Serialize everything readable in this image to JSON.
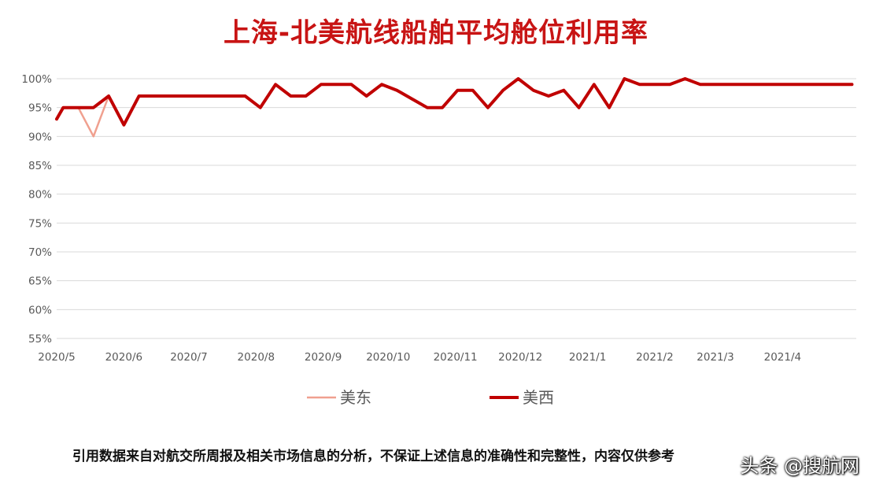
{
  "chart_data": {
    "type": "line",
    "title": "上海-北美航线船舶平均舱位利用率",
    "xlabel": "",
    "ylabel": "",
    "y_ticks": [
      "55%",
      "60%",
      "65%",
      "70%",
      "75%",
      "80%",
      "85%",
      "90%",
      "95%",
      "100%"
    ],
    "ylim": [
      55,
      100
    ],
    "x_ticks": [
      "2020/5",
      "2020/6",
      "2020/7",
      "2020/8",
      "2020/9",
      "2020/10",
      "2020/11",
      "2020/12",
      "2021/1",
      "2021/2",
      "2021/3",
      "2021/4"
    ],
    "grid": true,
    "legend_position": "bottom",
    "series": [
      {
        "name": "美东",
        "color": "#f0a08f",
        "points": [
          [
            "2020-05-04",
            95
          ],
          [
            "2020-05-11",
            95
          ],
          [
            "2020-05-18",
            90
          ],
          [
            "2020-05-25",
            97
          ]
        ]
      },
      {
        "name": "美西",
        "color": "#c00000",
        "points": [
          [
            "2020-05-01",
            93
          ],
          [
            "2020-05-04",
            95
          ],
          [
            "2020-05-11",
            95
          ],
          [
            "2020-05-18",
            95
          ],
          [
            "2020-05-25",
            97
          ],
          [
            "2020-06-01",
            92
          ],
          [
            "2020-06-08",
            97
          ],
          [
            "2020-06-15",
            97
          ],
          [
            "2020-06-22",
            97
          ],
          [
            "2020-06-29",
            97
          ],
          [
            "2020-07-06",
            97
          ],
          [
            "2020-07-13",
            97
          ],
          [
            "2020-07-20",
            97
          ],
          [
            "2020-07-27",
            97
          ],
          [
            "2020-08-03",
            95
          ],
          [
            "2020-08-10",
            99
          ],
          [
            "2020-08-17",
            97
          ],
          [
            "2020-08-24",
            97
          ],
          [
            "2020-08-31",
            99
          ],
          [
            "2020-09-07",
            99
          ],
          [
            "2020-09-14",
            99
          ],
          [
            "2020-09-21",
            97
          ],
          [
            "2020-09-28",
            99
          ],
          [
            "2020-10-05",
            98
          ],
          [
            "2020-10-12",
            96.5
          ],
          [
            "2020-10-19",
            95
          ],
          [
            "2020-10-26",
            95
          ],
          [
            "2020-11-02",
            98
          ],
          [
            "2020-11-09",
            98
          ],
          [
            "2020-11-16",
            95
          ],
          [
            "2020-11-23",
            98
          ],
          [
            "2020-11-30",
            100
          ],
          [
            "2020-12-07",
            98
          ],
          [
            "2020-12-14",
            97
          ],
          [
            "2020-12-21",
            98
          ],
          [
            "2020-12-28",
            95
          ],
          [
            "2021-01-04",
            99
          ],
          [
            "2021-01-11",
            95
          ],
          [
            "2021-01-18",
            100
          ],
          [
            "2021-01-25",
            99
          ],
          [
            "2021-02-01",
            99
          ],
          [
            "2021-02-08",
            99
          ],
          [
            "2021-02-15",
            100
          ],
          [
            "2021-02-22",
            99
          ],
          [
            "2021-03-01",
            99
          ],
          [
            "2021-03-08",
            99
          ],
          [
            "2021-03-15",
            99
          ],
          [
            "2021-03-22",
            99
          ],
          [
            "2021-03-29",
            99
          ],
          [
            "2021-04-05",
            99
          ],
          [
            "2021-04-12",
            99
          ],
          [
            "2021-04-19",
            99
          ],
          [
            "2021-04-26",
            99
          ],
          [
            "2021-05-03",
            99
          ]
        ]
      }
    ]
  },
  "footer": {
    "disclaimer": "引用数据来自对航交所周报及相关市场信息的分析，不保证上述信息的准确性和完整性，内容仅供参考",
    "watermark": "头条 @搜航网"
  }
}
